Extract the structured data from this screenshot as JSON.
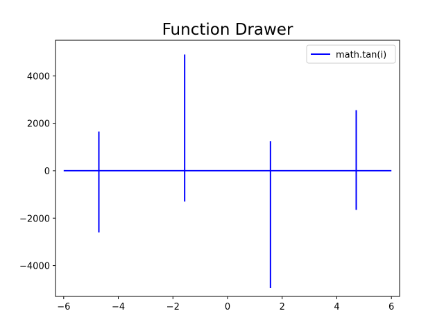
{
  "chart_data": {
    "type": "line",
    "title": "Function Drawer",
    "xlabel": "",
    "ylabel": "",
    "xlim": [
      -6.3,
      6.3
    ],
    "ylim": [
      -5300,
      5500
    ],
    "xticks": [
      -6,
      -4,
      -2,
      0,
      2,
      4,
      6
    ],
    "xtick_labels": [
      "−6",
      "−4",
      "−2",
      "0",
      "2",
      "4",
      "6"
    ],
    "yticks": [
      -4000,
      -2000,
      0,
      2000,
      4000
    ],
    "ytick_labels": [
      "−4000",
      "−2000",
      "0",
      "2000",
      "4000"
    ],
    "grid": false,
    "legend_position": "top-right",
    "series": [
      {
        "name": "math.tan(i)",
        "color": "#0000ff",
        "x_range": [
          -6,
          6
        ],
        "peaks": [
          {
            "x": -4.712,
            "top": 1650,
            "bottom": -2600
          },
          {
            "x": -1.571,
            "top": 4900,
            "bottom": -1300
          },
          {
            "x": 1.571,
            "top": 1250,
            "bottom": -4950
          },
          {
            "x": 4.712,
            "top": 2550,
            "bottom": -1650
          }
        ]
      }
    ]
  }
}
